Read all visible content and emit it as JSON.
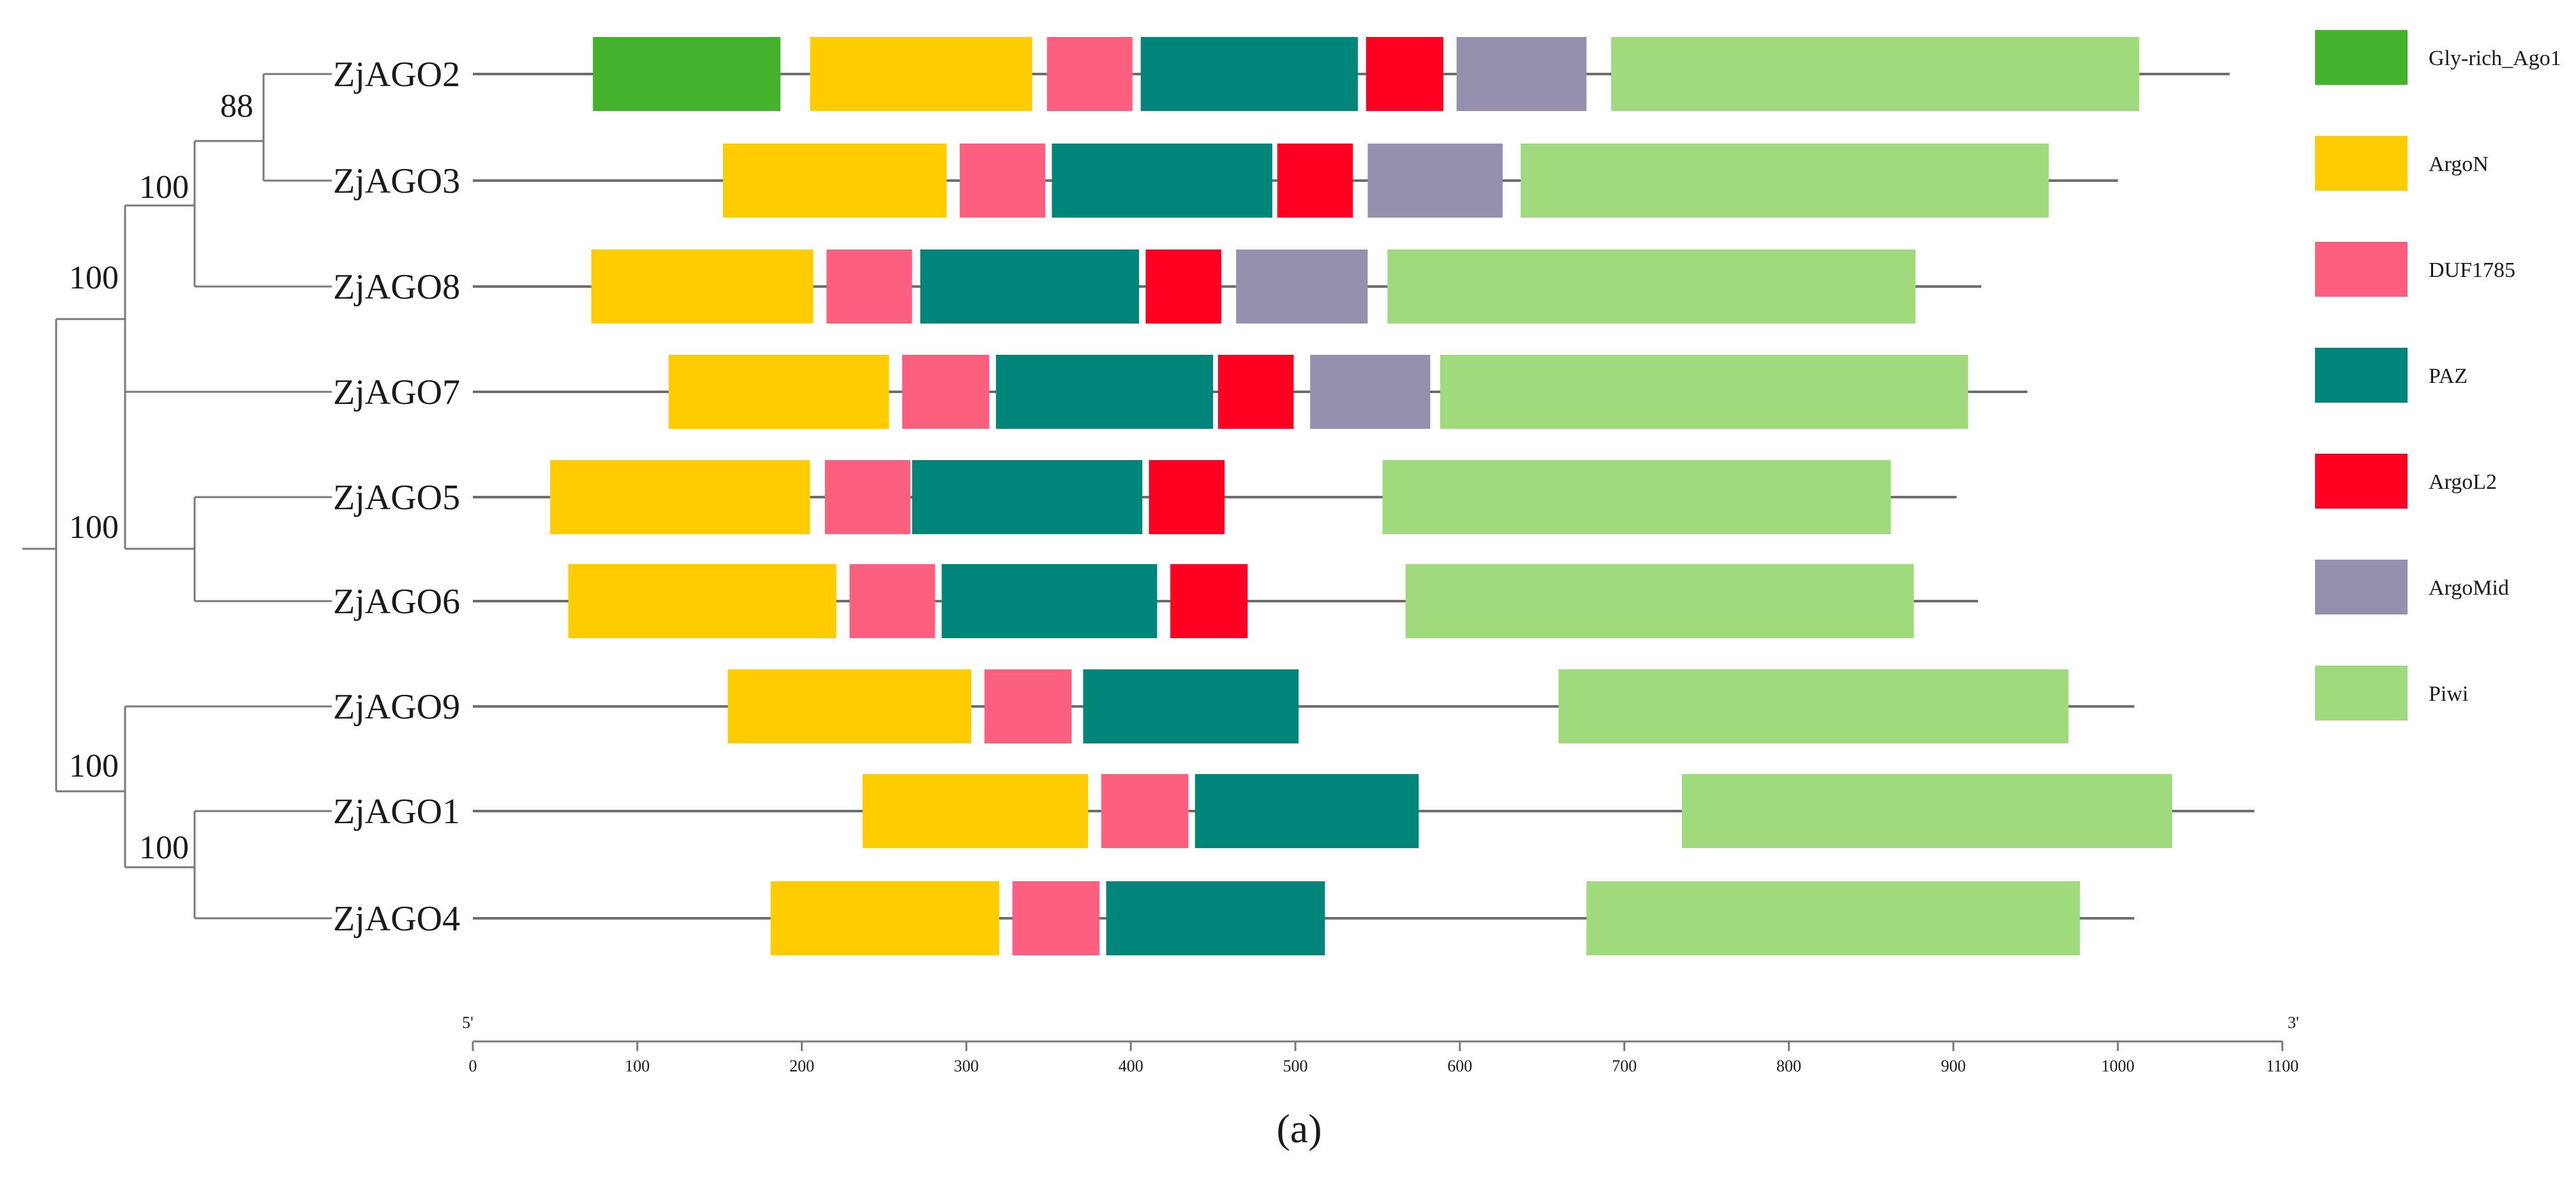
{
  "figure": {
    "panel_label": "(a)",
    "axis": {
      "label_5prime": "5'",
      "label_3prime": "3'",
      "min": 0,
      "max": 1100,
      "ticks": [
        0,
        100,
        200,
        300,
        400,
        500,
        600,
        700,
        800,
        900,
        1000,
        1100
      ]
    },
    "legend": [
      {
        "key": "gly",
        "label": "Gly-rich_Ago1",
        "color": "#44b22c"
      },
      {
        "key": "argon",
        "label": "ArgoN",
        "color": "#ffcc00"
      },
      {
        "key": "duf",
        "label": "DUF1785",
        "color": "#fd5f7e"
      },
      {
        "key": "paz",
        "label": "PAZ",
        "color": "#00857a"
      },
      {
        "key": "argol2",
        "label": "ArgoL2",
        "color": "#ff0022"
      },
      {
        "key": "argomid",
        "label": "ArgoMid",
        "color": "#968fad"
      },
      {
        "key": "piwi",
        "label": "Piwi",
        "color": "#9fdb7c"
      }
    ],
    "bootstrap_values": [
      "88",
      "100",
      "100",
      "100",
      "100",
      "100"
    ],
    "proteins": [
      {
        "name": "ZjAGO2",
        "length": 1068,
        "domains": [
          {
            "type": "gly",
            "start": 73,
            "end": 187
          },
          {
            "type": "argon",
            "start": 205,
            "end": 340
          },
          {
            "type": "duf",
            "start": 349,
            "end": 401
          },
          {
            "type": "paz",
            "start": 406,
            "end": 538
          },
          {
            "type": "argol2",
            "start": 543,
            "end": 590
          },
          {
            "type": "argomid",
            "start": 598,
            "end": 677
          },
          {
            "type": "piwi",
            "start": 692,
            "end": 1013
          }
        ]
      },
      {
        "name": "ZjAGO3",
        "length": 1000,
        "domains": [
          {
            "type": "argon",
            "start": 152,
            "end": 288
          },
          {
            "type": "duf",
            "start": 296,
            "end": 348
          },
          {
            "type": "paz",
            "start": 352,
            "end": 486
          },
          {
            "type": "argol2",
            "start": 489,
            "end": 535
          },
          {
            "type": "argomid",
            "start": 544,
            "end": 626
          },
          {
            "type": "piwi",
            "start": 637,
            "end": 958
          }
        ]
      },
      {
        "name": "ZjAGO8",
        "length": 917,
        "domains": [
          {
            "type": "argon",
            "start": 72,
            "end": 207
          },
          {
            "type": "duf",
            "start": 215,
            "end": 267
          },
          {
            "type": "paz",
            "start": 272,
            "end": 405
          },
          {
            "type": "argol2",
            "start": 409,
            "end": 455
          },
          {
            "type": "argomid",
            "start": 464,
            "end": 544
          },
          {
            "type": "piwi",
            "start": 556,
            "end": 877
          }
        ]
      },
      {
        "name": "ZjAGO7",
        "length": 945,
        "domains": [
          {
            "type": "argon",
            "start": 119,
            "end": 253
          },
          {
            "type": "duf",
            "start": 261,
            "end": 314
          },
          {
            "type": "paz",
            "start": 318,
            "end": 450
          },
          {
            "type": "argol2",
            "start": 453,
            "end": 499
          },
          {
            "type": "argomid",
            "start": 509,
            "end": 582
          },
          {
            "type": "piwi",
            "start": 588,
            "end": 909
          }
        ]
      },
      {
        "name": "ZjAGO5",
        "length": 902,
        "domains": [
          {
            "type": "argon",
            "start": 47,
            "end": 205
          },
          {
            "type": "duf",
            "start": 214,
            "end": 266
          },
          {
            "type": "paz",
            "start": 267,
            "end": 407
          },
          {
            "type": "argol2",
            "start": 411,
            "end": 457
          },
          {
            "type": "piwi",
            "start": 553,
            "end": 862
          }
        ]
      },
      {
        "name": "ZjAGO6",
        "length": 915,
        "domains": [
          {
            "type": "argon",
            "start": 58,
            "end": 221
          },
          {
            "type": "duf",
            "start": 229,
            "end": 281
          },
          {
            "type": "paz",
            "start": 285,
            "end": 416
          },
          {
            "type": "argol2",
            "start": 424,
            "end": 471
          },
          {
            "type": "piwi",
            "start": 567,
            "end": 876
          }
        ]
      },
      {
        "name": "ZjAGO9",
        "length": 1010,
        "domains": [
          {
            "type": "argon",
            "start": 155,
            "end": 303
          },
          {
            "type": "duf",
            "start": 311,
            "end": 364
          },
          {
            "type": "paz",
            "start": 371,
            "end": 502
          },
          {
            "type": "piwi",
            "start": 660,
            "end": 970
          }
        ]
      },
      {
        "name": "ZjAGO1",
        "length": 1083,
        "domains": [
          {
            "type": "argon",
            "start": 237,
            "end": 374
          },
          {
            "type": "duf",
            "start": 382,
            "end": 435
          },
          {
            "type": "paz",
            "start": 439,
            "end": 575
          },
          {
            "type": "piwi",
            "start": 735,
            "end": 1033
          }
        ]
      },
      {
        "name": "ZjAGO4",
        "length": 1010,
        "domains": [
          {
            "type": "argon",
            "start": 181,
            "end": 320
          },
          {
            "type": "duf",
            "start": 328,
            "end": 381
          },
          {
            "type": "paz",
            "start": 385,
            "end": 518
          },
          {
            "type": "piwi",
            "start": 677,
            "end": 977
          }
        ]
      }
    ]
  }
}
